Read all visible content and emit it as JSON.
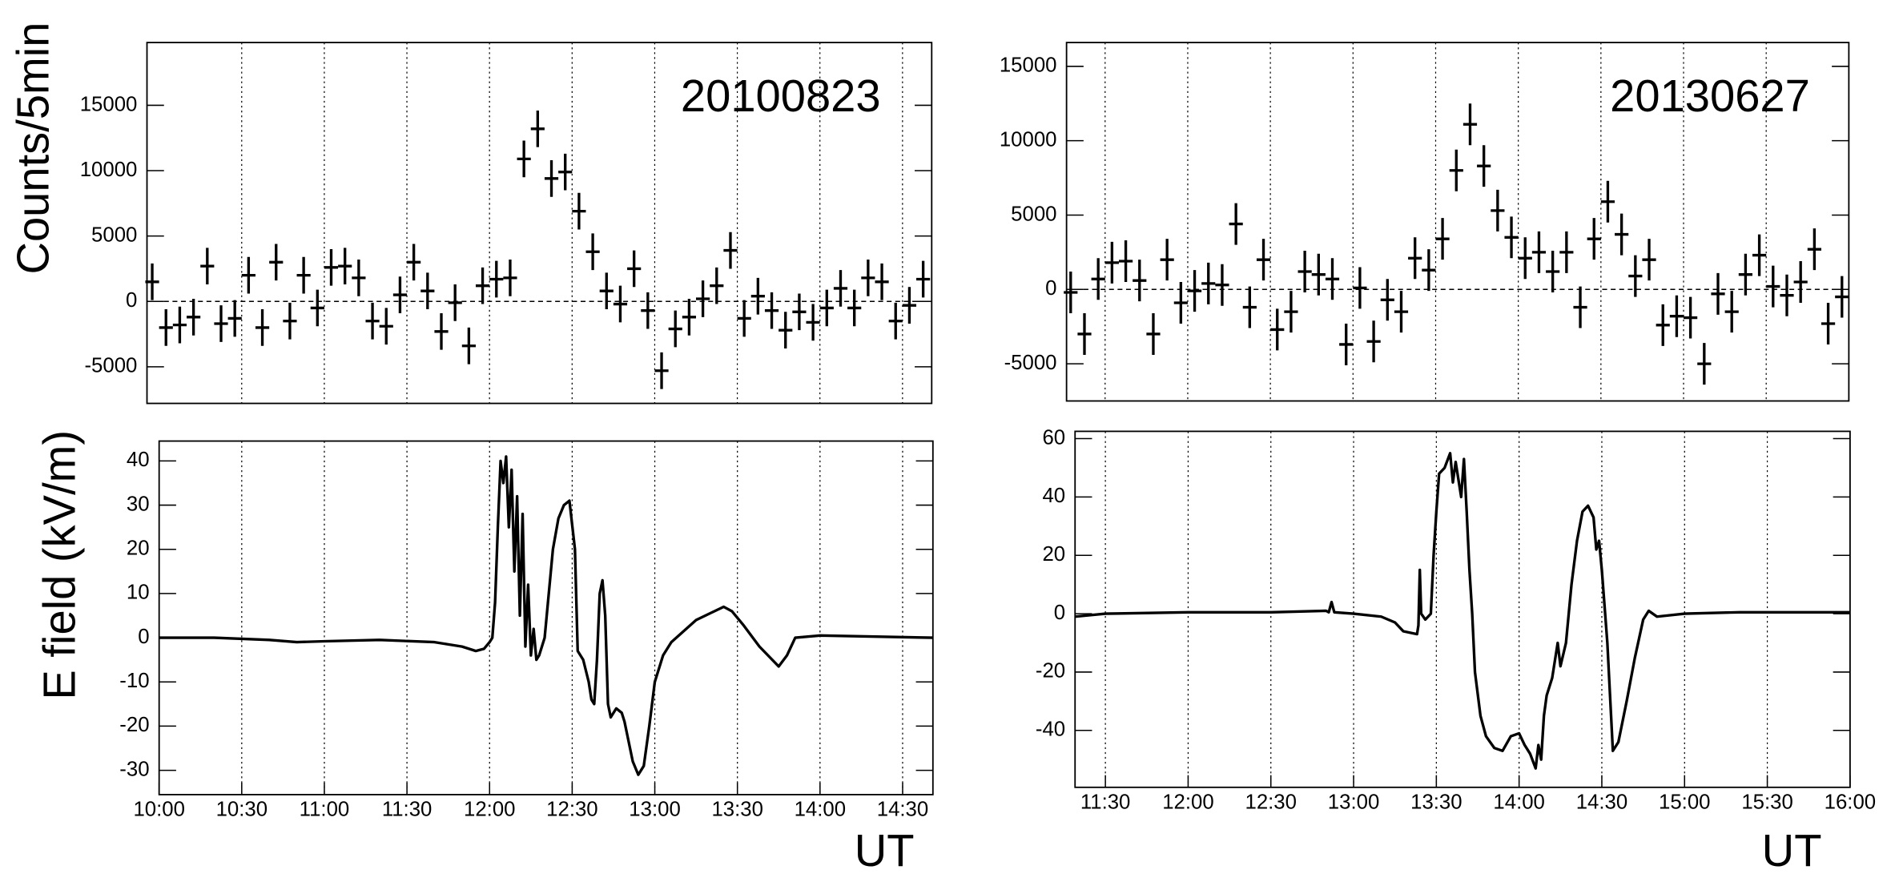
{
  "chart_data": [
    {
      "type": "errorbar",
      "ylabel": "Counts/5min",
      "annotation": "20100823",
      "xlim": [
        595.6,
        880.6
      ],
      "ylim": [
        -7800,
        19800
      ],
      "yticks": [
        -5000,
        0,
        5000,
        10000,
        15000
      ],
      "xgrid": [
        630,
        660,
        690,
        720,
        750,
        780,
        810,
        840,
        870
      ],
      "zero_line": true,
      "xerr": 2.5,
      "yerr": 1400,
      "color": "#000000",
      "x": [
        597.5,
        602.5,
        607.5,
        612.5,
        617.5,
        622.5,
        627.5,
        632.5,
        637.5,
        642.5,
        647.5,
        652.5,
        657.5,
        662.5,
        667.5,
        672.5,
        677.5,
        682.5,
        687.5,
        692.5,
        697.5,
        702.5,
        707.5,
        712.5,
        717.5,
        722.5,
        727.5,
        732.5,
        737.5,
        742.5,
        747.5,
        752.5,
        757.5,
        762.5,
        767.5,
        772.5,
        777.5,
        782.5,
        787.5,
        792.5,
        797.5,
        802.5,
        807.5,
        812.5,
        817.5,
        822.5,
        827.5,
        832.5,
        837.5,
        842.5,
        847.5,
        852.5,
        857.5,
        862.5,
        867.5,
        872.5,
        877.5
      ],
      "values": [
        1500,
        -2000,
        -1800,
        -1200,
        2700,
        -1700,
        -1300,
        2000,
        -2000,
        3000,
        -1500,
        2000,
        -500,
        2600,
        2700,
        1800,
        -1500,
        -1900,
        500,
        3000,
        800,
        -2300,
        -100,
        -3400,
        1200,
        1700,
        1800,
        10900,
        13200,
        9400,
        9900,
        6900,
        3800,
        800,
        -200,
        2500,
        -700,
        -5300,
        -2100,
        -1200,
        200,
        1200,
        3900,
        -1300,
        400,
        -700,
        -2200,
        -800,
        -1600,
        -500,
        1000,
        -500,
        1800,
        1500,
        -1500,
        -300,
        1700
      ]
    },
    {
      "type": "errorbar",
      "annotation": "20130627",
      "xlim": [
        676,
        960
      ],
      "ylim": [
        -7500,
        16600
      ],
      "yticks": [
        -5000,
        0,
        5000,
        10000,
        15000
      ],
      "xgrid": [
        690,
        720,
        750,
        780,
        810,
        840,
        870,
        900,
        930
      ],
      "zero_line": true,
      "xerr": 2.5,
      "yerr": 1400,
      "color": "#000000",
      "x": [
        677.5,
        682.5,
        687.5,
        692.5,
        697.5,
        702.5,
        707.5,
        712.5,
        717.5,
        722.5,
        727.5,
        732.5,
        737.5,
        742.5,
        747.5,
        752.5,
        757.5,
        762.5,
        767.5,
        772.5,
        777.5,
        782.5,
        787.5,
        792.5,
        797.5,
        802.5,
        807.5,
        812.5,
        817.5,
        822.5,
        827.5,
        832.5,
        837.5,
        842.5,
        847.5,
        852.5,
        857.5,
        862.5,
        867.5,
        872.5,
        877.5,
        882.5,
        887.5,
        892.5,
        897.5,
        902.5,
        907.5,
        912.5,
        917.5,
        922.5,
        927.5,
        932.5,
        937.5,
        942.5,
        947.5,
        952.5,
        957.5
      ],
      "values": [
        -200,
        -3000,
        700,
        1800,
        1900,
        600,
        -3000,
        2000,
        -900,
        -100,
        400,
        300,
        4400,
        -1200,
        2000,
        -2700,
        -1500,
        1200,
        1000,
        700,
        -3700,
        100,
        -3500,
        -700,
        -1500,
        2100,
        1300,
        3400,
        8000,
        11100,
        8300,
        5300,
        3500,
        2100,
        2500,
        1200,
        2500,
        -1200,
        3400,
        5900,
        3700,
        900,
        2000,
        -2400,
        -1800,
        -1900,
        -5000,
        -300,
        -1500,
        1000,
        2300,
        200,
        -400,
        500,
        2700,
        -2300,
        -500
      ]
    },
    {
      "type": "line",
      "ylabel": "E field (kV/m)",
      "xlabel": "UT",
      "xlim": [
        600,
        881
      ],
      "ylim": [
        -35.5,
        44.5
      ],
      "yticks": [
        -30,
        -20,
        -10,
        0,
        10,
        20,
        30,
        40
      ],
      "xticks": [
        {
          "value": 600,
          "label": "10:00"
        },
        {
          "value": 630,
          "label": "10:30"
        },
        {
          "value": 660,
          "label": "11:00"
        },
        {
          "value": 690,
          "label": "11:30"
        },
        {
          "value": 720,
          "label": "12:00"
        },
        {
          "value": 750,
          "label": "12:30"
        },
        {
          "value": 780,
          "label": "13:00"
        },
        {
          "value": 810,
          "label": "13:30"
        },
        {
          "value": 840,
          "label": "14:00"
        },
        {
          "value": 870,
          "label": "14:30"
        }
      ],
      "grid": true,
      "color": "#000000",
      "x": [
        600,
        620,
        640,
        650,
        660,
        680,
        700,
        710,
        715,
        718,
        720,
        721,
        722,
        723,
        724,
        725,
        726,
        727,
        728,
        729,
        730,
        731,
        732,
        733,
        734,
        735,
        736,
        737,
        738,
        740,
        743,
        745,
        747,
        749,
        751,
        752,
        754,
        756,
        757,
        758,
        759,
        760,
        761,
        762,
        763,
        764,
        766,
        768,
        769,
        770,
        772,
        774,
        776,
        778,
        780,
        783,
        786,
        795,
        805,
        808,
        812,
        818,
        825,
        828,
        831,
        840,
        881
      ],
      "values": [
        0,
        0,
        -0.5,
        -1,
        -0.8,
        -0.5,
        -1,
        -2,
        -3,
        -2.5,
        -1,
        0,
        8,
        25,
        40,
        35,
        41,
        25,
        38,
        15,
        32,
        5,
        28,
        -2,
        12,
        -4,
        2,
        -5,
        -4,
        0,
        20,
        27,
        30,
        31,
        20,
        -3,
        -5,
        -10,
        -14,
        -15,
        -5,
        10,
        13,
        5,
        -15,
        -18,
        -16,
        -17,
        -19,
        -22,
        -28,
        -31,
        -29,
        -20,
        -10,
        -4,
        -1,
        4,
        7,
        6,
        3,
        -2,
        -6.5,
        -4,
        0,
        0.5,
        0
      ]
    },
    {
      "type": "line",
      "xlabel": "UT",
      "xlim": [
        679,
        960
      ],
      "ylim": [
        -59.5,
        62.5
      ],
      "yticks": [
        -40,
        -20,
        0,
        20,
        40,
        60
      ],
      "xticks": [
        {
          "value": 690,
          "label": "11:30"
        },
        {
          "value": 720,
          "label": "12:00"
        },
        {
          "value": 750,
          "label": "12:30"
        },
        {
          "value": 780,
          "label": "13:00"
        },
        {
          "value": 810,
          "label": "13:30"
        },
        {
          "value": 840,
          "label": "14:00"
        },
        {
          "value": 870,
          "label": "14:30"
        },
        {
          "value": 900,
          "label": "15:00"
        },
        {
          "value": 930,
          "label": "15:30"
        },
        {
          "value": 960,
          "label": "16:00"
        }
      ],
      "grid": true,
      "color": "#000000",
      "x": [
        679,
        690,
        720,
        750,
        770,
        771,
        772,
        773,
        780,
        790,
        795,
        798,
        803,
        803.5,
        804,
        804.5,
        806,
        808,
        809,
        810,
        811,
        813,
        815,
        816,
        817,
        819,
        820,
        821,
        822,
        823,
        824,
        826,
        828,
        831,
        834,
        837,
        840,
        842,
        844,
        846,
        847,
        848,
        849,
        850,
        852,
        854,
        855,
        857,
        859,
        861,
        863,
        865,
        867,
        868,
        869,
        870,
        872,
        874,
        876,
        879,
        882,
        885,
        887,
        890,
        900,
        920,
        960
      ],
      "values": [
        -1,
        0,
        0.5,
        0.5,
        1,
        0.5,
        4,
        0.5,
        0,
        -1,
        -3,
        -6,
        -7,
        -4,
        15,
        0,
        -2,
        0,
        20,
        35,
        48,
        50,
        55,
        45,
        52,
        40,
        53,
        35,
        15,
        0,
        -20,
        -35,
        -42,
        -46,
        -47,
        -42,
        -41,
        -45,
        -48,
        -53,
        -45,
        -50,
        -35,
        -28,
        -22,
        -10,
        -18,
        -10,
        10,
        25,
        35,
        37,
        33,
        22,
        25,
        15,
        -10,
        -47,
        -44,
        -30,
        -15,
        -2,
        1,
        -1,
        0,
        0.5,
        0.5
      ]
    }
  ]
}
